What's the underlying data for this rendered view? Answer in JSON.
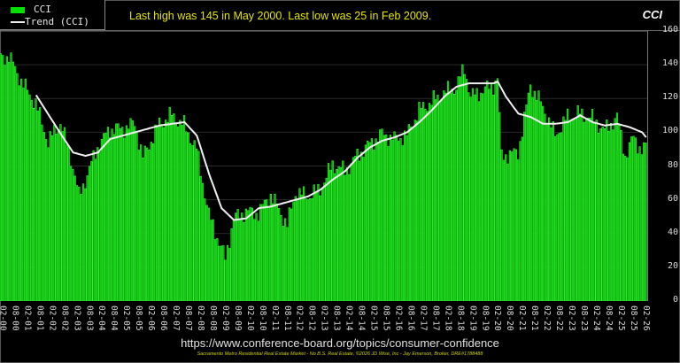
{
  "header": {
    "headline": "Last high was 145 in May 2000. Last low was 25 in Feb 2009.",
    "corner_title": "CCI"
  },
  "legend": {
    "items": [
      {
        "label": "CCI",
        "type": "bar",
        "color": "#00e000"
      },
      {
        "label": "Trend (CCI)",
        "type": "line",
        "color": "#eeeeee"
      }
    ]
  },
  "source_url": "https://www.conference-board.org/topics/consumer-confidence",
  "footer": "Sacramento Metro Residential Real Estate Market - No B.S. Real Estate, ©2026 JD Wise, Inc - Jay Emerson, Broker, DRE#1788488",
  "colors": {
    "bar_fill": "#00b400",
    "bar_edge": "#40ff40",
    "trend": "#f0f0f0",
    "background": "#000000",
    "headline": "#e6e600"
  },
  "chart_data": {
    "type": "bar",
    "title": "CCI",
    "subtitle": "Last high was 145 in May 2000. Last low was 25 in Feb 2009.",
    "xlabel": "",
    "ylabel": "",
    "ylim": [
      0,
      160
    ],
    "yticks": [
      0,
      20,
      40,
      60,
      80,
      100,
      120,
      140,
      160
    ],
    "y_axis_position": "right",
    "grid": true,
    "legend_position": "top-left",
    "x_start": "2000-01",
    "x_end": "2026-02",
    "x_tick_labels": [
      "02-00",
      "08-00",
      "02-01",
      "08-01",
      "02-02",
      "08-02",
      "02-03",
      "08-03",
      "02-04",
      "08-04",
      "02-05",
      "08-05",
      "02-06",
      "08-06",
      "02-07",
      "08-07",
      "02-08",
      "08-08",
      "02-09",
      "08-09",
      "02-10",
      "08-10",
      "02-11",
      "08-11",
      "02-12",
      "08-12",
      "02-13",
      "08-13",
      "02-14",
      "08-14",
      "02-15",
      "08-15",
      "02-16",
      "08-16",
      "02-17",
      "08-17",
      "02-18",
      "08-18",
      "02-19",
      "08-19",
      "02-20",
      "08-20",
      "02-21",
      "08-21",
      "02-22",
      "08-22",
      "02-23",
      "08-23",
      "02-24",
      "08-24",
      "02-25",
      "08-25",
      "02-26"
    ],
    "series": [
      {
        "name": "CCI",
        "type": "bar",
        "annual_points": [
          {
            "x": "2000-01",
            "y": 144
          },
          {
            "x": "2000-05",
            "y": 145
          },
          {
            "x": "2000-12",
            "y": 128
          },
          {
            "x": "2001-06",
            "y": 117
          },
          {
            "x": "2001-12",
            "y": 94
          },
          {
            "x": "2002-06",
            "y": 106
          },
          {
            "x": "2002-12",
            "y": 80
          },
          {
            "x": "2003-03",
            "y": 62
          },
          {
            "x": "2003-12",
            "y": 91
          },
          {
            "x": "2004-06",
            "y": 102
          },
          {
            "x": "2004-12",
            "y": 102
          },
          {
            "x": "2005-06",
            "y": 105
          },
          {
            "x": "2005-10",
            "y": 85
          },
          {
            "x": "2006-06",
            "y": 105
          },
          {
            "x": "2006-12",
            "y": 110
          },
          {
            "x": "2007-06",
            "y": 104
          },
          {
            "x": "2007-12",
            "y": 90
          },
          {
            "x": "2008-06",
            "y": 51
          },
          {
            "x": "2009-02",
            "y": 25
          },
          {
            "x": "2009-06",
            "y": 49
          },
          {
            "x": "2009-12",
            "y": 53
          },
          {
            "x": "2010-06",
            "y": 52
          },
          {
            "x": "2010-12",
            "y": 63
          },
          {
            "x": "2011-08",
            "y": 45
          },
          {
            "x": "2011-12",
            "y": 64
          },
          {
            "x": "2012-06",
            "y": 62
          },
          {
            "x": "2012-12",
            "y": 66
          },
          {
            "x": "2013-06",
            "y": 81
          },
          {
            "x": "2013-12",
            "y": 77
          },
          {
            "x": "2014-06",
            "y": 86
          },
          {
            "x": "2014-12",
            "y": 93
          },
          {
            "x": "2015-06",
            "y": 99
          },
          {
            "x": "2015-12",
            "y": 96
          },
          {
            "x": "2016-06",
            "y": 98
          },
          {
            "x": "2016-12",
            "y": 113
          },
          {
            "x": "2017-06",
            "y": 118
          },
          {
            "x": "2017-12",
            "y": 123
          },
          {
            "x": "2018-06",
            "y": 127
          },
          {
            "x": "2018-10",
            "y": 138
          },
          {
            "x": "2019-01",
            "y": 121
          },
          {
            "x": "2019-06",
            "y": 124
          },
          {
            "x": "2019-12",
            "y": 128
          },
          {
            "x": "2020-02",
            "y": 132
          },
          {
            "x": "2020-04",
            "y": 86
          },
          {
            "x": "2020-12",
            "y": 88
          },
          {
            "x": "2021-06",
            "y": 128
          },
          {
            "x": "2021-12",
            "y": 115
          },
          {
            "x": "2022-06",
            "y": 98
          },
          {
            "x": "2022-12",
            "y": 109
          },
          {
            "x": "2023-06",
            "y": 111
          },
          {
            "x": "2023-12",
            "y": 108
          },
          {
            "x": "2024-06",
            "y": 101
          },
          {
            "x": "2024-12",
            "y": 109
          },
          {
            "x": "2025-04",
            "y": 86
          },
          {
            "x": "2025-08",
            "y": 97
          },
          {
            "x": "2025-12",
            "y": 89
          },
          {
            "x": "2026-02",
            "y": 91
          }
        ]
      },
      {
        "name": "Trend (CCI)",
        "type": "line",
        "annual_points": [
          {
            "x": "2001-06",
            "y": 122
          },
          {
            "x": "2002-06",
            "y": 99
          },
          {
            "x": "2002-12",
            "y": 88
          },
          {
            "x": "2003-06",
            "y": 86
          },
          {
            "x": "2003-12",
            "y": 88
          },
          {
            "x": "2004-06",
            "y": 96
          },
          {
            "x": "2004-12",
            "y": 98
          },
          {
            "x": "2005-06",
            "y": 100
          },
          {
            "x": "2005-12",
            "y": 102
          },
          {
            "x": "2006-06",
            "y": 104
          },
          {
            "x": "2006-12",
            "y": 105
          },
          {
            "x": "2007-06",
            "y": 106
          },
          {
            "x": "2007-12",
            "y": 98
          },
          {
            "x": "2008-06",
            "y": 75
          },
          {
            "x": "2008-12",
            "y": 55
          },
          {
            "x": "2009-06",
            "y": 48
          },
          {
            "x": "2009-12",
            "y": 49
          },
          {
            "x": "2010-06",
            "y": 55
          },
          {
            "x": "2010-12",
            "y": 56
          },
          {
            "x": "2011-06",
            "y": 58
          },
          {
            "x": "2011-12",
            "y": 60
          },
          {
            "x": "2012-06",
            "y": 62
          },
          {
            "x": "2012-12",
            "y": 66
          },
          {
            "x": "2013-06",
            "y": 72
          },
          {
            "x": "2013-12",
            "y": 77
          },
          {
            "x": "2014-06",
            "y": 85
          },
          {
            "x": "2014-12",
            "y": 91
          },
          {
            "x": "2015-06",
            "y": 95
          },
          {
            "x": "2015-12",
            "y": 97
          },
          {
            "x": "2016-06",
            "y": 100
          },
          {
            "x": "2016-12",
            "y": 106
          },
          {
            "x": "2017-06",
            "y": 113
          },
          {
            "x": "2017-12",
            "y": 121
          },
          {
            "x": "2018-06",
            "y": 127
          },
          {
            "x": "2018-12",
            "y": 129
          },
          {
            "x": "2019-06",
            "y": 129
          },
          {
            "x": "2019-12",
            "y": 129
          },
          {
            "x": "2020-02",
            "y": 130
          },
          {
            "x": "2020-06",
            "y": 121
          },
          {
            "x": "2020-12",
            "y": 111
          },
          {
            "x": "2021-06",
            "y": 109
          },
          {
            "x": "2021-12",
            "y": 105
          },
          {
            "x": "2022-06",
            "y": 105
          },
          {
            "x": "2022-12",
            "y": 106
          },
          {
            "x": "2023-06",
            "y": 110
          },
          {
            "x": "2023-12",
            "y": 106
          },
          {
            "x": "2024-06",
            "y": 104
          },
          {
            "x": "2024-12",
            "y": 105
          },
          {
            "x": "2025-06",
            "y": 103
          },
          {
            "x": "2025-12",
            "y": 100
          },
          {
            "x": "2026-02",
            "y": 97
          }
        ]
      }
    ]
  }
}
